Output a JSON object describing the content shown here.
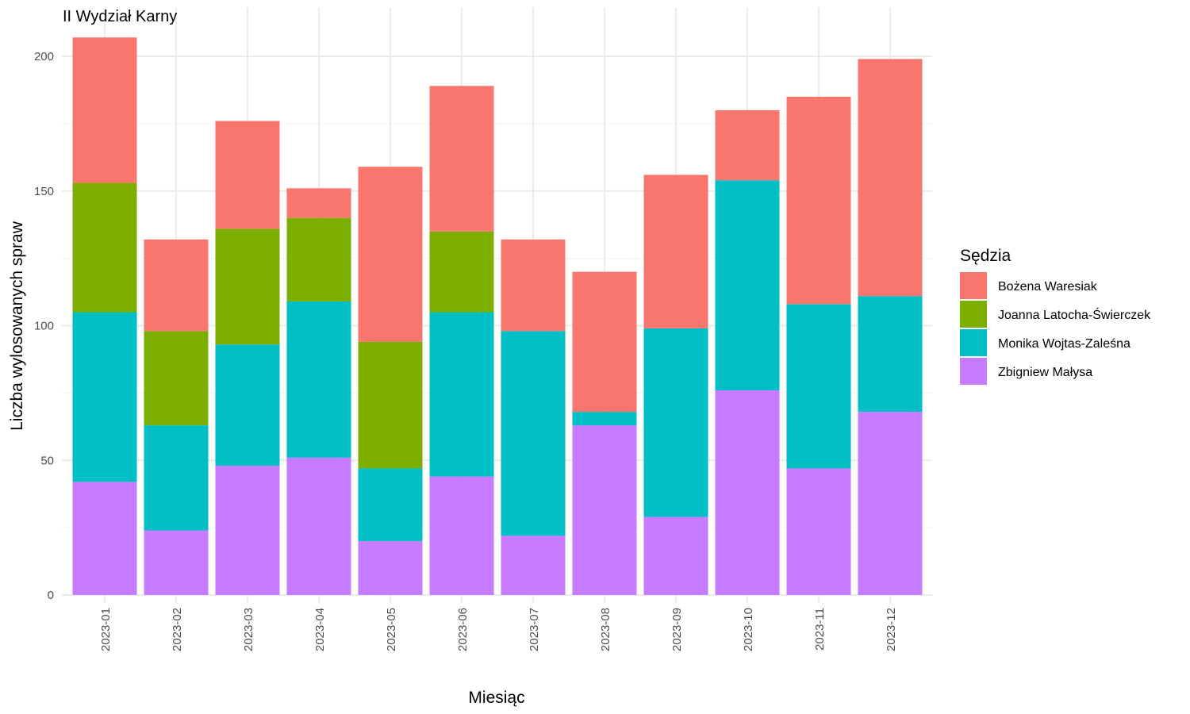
{
  "chart_data": {
    "type": "bar",
    "stacked": true,
    "title": "II Wydział Karny",
    "xlabel": "Miesiąc",
    "ylabel": "Liczba wylosowanych spraw",
    "ylim": [
      0,
      210
    ],
    "yticks": [
      0,
      50,
      100,
      150,
      200
    ],
    "grid": true,
    "legend_title": "Sędzia",
    "legend_position": "right",
    "categories": [
      "2023-01",
      "2023-02",
      "2023-03",
      "2023-04",
      "2023-05",
      "2023-06",
      "2023-07",
      "2023-08",
      "2023-09",
      "2023-10",
      "2023-11",
      "2023-12"
    ],
    "series": [
      {
        "name": "Zbigniew Małysa",
        "color": "#C77CFF",
        "values": [
          42,
          24,
          48,
          51,
          20,
          44,
          22,
          63,
          29,
          76,
          47,
          68
        ]
      },
      {
        "name": "Monika Wojtas-Zaleśna",
        "color": "#00BFC4",
        "values": [
          63,
          39,
          45,
          58,
          27,
          61,
          76,
          5,
          70,
          78,
          61,
          43
        ]
      },
      {
        "name": "Joanna Latocha-Świerczek",
        "color": "#7CAE00",
        "values": [
          48,
          35,
          43,
          31,
          47,
          30,
          0,
          0,
          0,
          0,
          0,
          0
        ]
      },
      {
        "name": "Bożena Waresiak",
        "color": "#F8766D",
        "values": [
          54,
          34,
          40,
          11,
          65,
          54,
          34,
          52,
          57,
          26,
          77,
          88
        ]
      }
    ],
    "legend_order": [
      "Bożena Waresiak",
      "Joanna Latocha-Świerczek",
      "Monika Wojtas-Zaleśna",
      "Zbigniew Małysa"
    ]
  }
}
